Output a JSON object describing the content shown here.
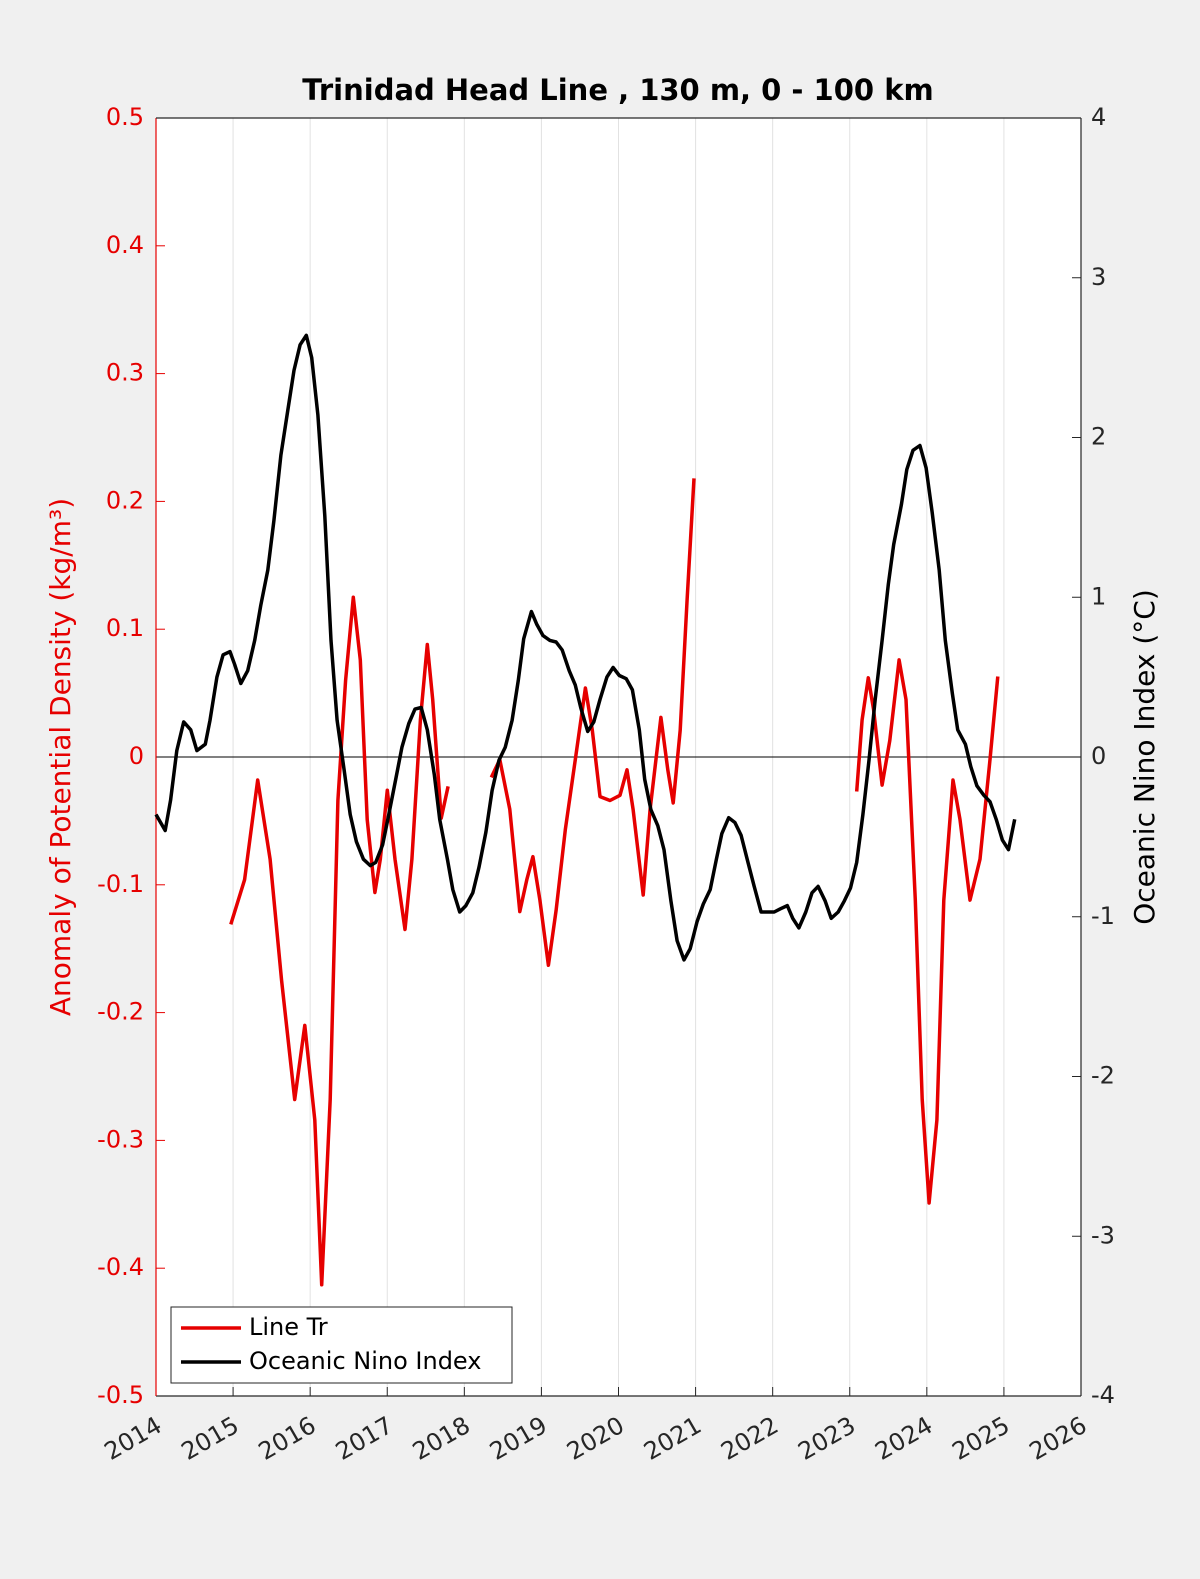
{
  "chart_data": {
    "type": "line",
    "title": "Trinidad Head Line , 130 m, 0 - 100 km",
    "ylabel": "Anomaly of Potential Density (kg/m³)",
    "y2label": "Oceanic Nino Index (°C)",
    "xlim": [
      2014,
      2026
    ],
    "xticks": [
      2014,
      2015,
      2016,
      2017,
      2018,
      2019,
      2020,
      2021,
      2022,
      2023,
      2024,
      2025,
      2026
    ],
    "ylim": [
      -0.5,
      0.5
    ],
    "yticks": [
      -0.5,
      -0.4,
      -0.3,
      -0.2,
      -0.1,
      0,
      0.1,
      0.2,
      0.3,
      0.4,
      0.5
    ],
    "y2lim": [
      -4,
      4
    ],
    "y2ticks": [
      -4,
      -3,
      -2,
      -1,
      0,
      1,
      2,
      3,
      4
    ],
    "grid": "x",
    "legend": "lower left",
    "ylabel_color": "#e60000",
    "series": [
      {
        "name": "Line Tr",
        "color": "#e60000",
        "axis": "y",
        "x": [
          2014.97,
          2015.15,
          2015.32,
          2015.48,
          2015.63,
          2015.8,
          2015.93,
          2016.06,
          2016.15,
          2016.26,
          2016.36,
          2016.46,
          2016.56,
          2016.65,
          2016.74,
          2016.84,
          2016.91,
          2017.0,
          2017.1,
          2017.23,
          2017.32,
          2017.43,
          2017.52,
          2017.59,
          2017.7,
          2017.79,
          2018.05,
          2018.35,
          2018.46,
          2018.59,
          2018.72,
          2018.81,
          2018.89,
          2018.98,
          2019.09,
          2019.19,
          2019.31,
          2019.44,
          2019.57,
          2019.66,
          2019.76,
          2019.89,
          2020.02,
          2020.11,
          2020.19,
          2020.32,
          2020.41,
          2020.55,
          2020.64,
          2020.71,
          2020.8,
          2020.89,
          2020.98,
          2022.0,
          2023.09,
          2023.16,
          2023.24,
          2023.31,
          2023.42,
          2023.52,
          2023.64,
          2023.73,
          2023.85,
          2023.94,
          2024.03,
          2024.13,
          2024.22,
          2024.34,
          2024.43,
          2024.56,
          2024.69,
          2024.82,
          2024.92
        ],
        "values": [
          -0.131,
          -0.096,
          -0.018,
          -0.08,
          -0.175,
          -0.268,
          -0.21,
          -0.284,
          -0.413,
          -0.268,
          -0.034,
          0.06,
          0.125,
          0.076,
          -0.049,
          -0.106,
          -0.08,
          -0.026,
          -0.08,
          -0.135,
          -0.08,
          0.029,
          0.088,
          0.045,
          -0.048,
          -0.023,
          null,
          -0.016,
          -0.002,
          -0.041,
          -0.121,
          -0.096,
          -0.078,
          -0.112,
          -0.163,
          -0.12,
          -0.057,
          -0.002,
          0.054,
          0.021,
          -0.031,
          -0.034,
          -0.03,
          -0.01,
          -0.041,
          -0.108,
          -0.041,
          0.031,
          -0.01,
          -0.036,
          0.021,
          0.123,
          0.218,
          null,
          -0.027,
          0.029,
          0.062,
          0.037,
          -0.022,
          0.013,
          0.076,
          0.045,
          -0.112,
          -0.268,
          -0.349,
          -0.284,
          -0.112,
          -0.018,
          -0.049,
          -0.112,
          -0.08,
          -0.002,
          0.063
        ]
      },
      {
        "name": "Oceanic Nino Index",
        "color": "#000000",
        "axis": "y2",
        "x": [
          2014.0,
          2014.12,
          2014.19,
          2014.27,
          2014.36,
          2014.45,
          2014.53,
          2014.64,
          2014.7,
          2014.79,
          2014.87,
          2014.96,
          2015.02,
          2015.1,
          2015.19,
          2015.28,
          2015.36,
          2015.45,
          2015.53,
          2015.62,
          2015.71,
          2015.79,
          2015.87,
          2015.95,
          2016.02,
          2016.1,
          2016.19,
          2016.27,
          2016.35,
          2016.44,
          2016.52,
          2016.6,
          2016.69,
          2016.78,
          2016.85,
          2016.94,
          2017.02,
          2017.11,
          2017.19,
          2017.28,
          2017.36,
          2017.44,
          2017.52,
          2017.61,
          2017.68,
          2017.78,
          2017.85,
          2017.94,
          2018.02,
          2018.11,
          2018.19,
          2018.28,
          2018.36,
          2018.45,
          2018.53,
          2018.62,
          2018.7,
          2018.77,
          2018.87,
          2018.94,
          2019.02,
          2019.11,
          2019.19,
          2019.27,
          2019.36,
          2019.44,
          2019.51,
          2019.6,
          2019.68,
          2019.76,
          2019.85,
          2019.93,
          2020.01,
          2020.1,
          2020.18,
          2020.27,
          2020.34,
          2020.42,
          2020.51,
          2020.59,
          2020.68,
          2020.76,
          2020.85,
          2020.93,
          2021.02,
          2021.1,
          2021.19,
          2021.27,
          2021.34,
          2021.43,
          2021.51,
          2021.59,
          2021.68,
          2021.76,
          2021.85,
          2021.93,
          2022.02,
          2022.1,
          2022.19,
          2022.26,
          2022.34,
          2022.43,
          2022.51,
          2022.59,
          2022.68,
          2022.76,
          2022.85,
          2022.93,
          2023.01,
          2023.09,
          2023.17,
          2023.25,
          2023.33,
          2023.42,
          2023.5,
          2023.57,
          2023.67,
          2023.74,
          2023.82,
          2023.91,
          2023.99,
          2024.07,
          2024.16,
          2024.24,
          2024.33,
          2024.4,
          2024.5,
          2024.57,
          2024.65,
          2024.74,
          2024.82,
          2024.9,
          2024.98,
          2025.06,
          2025.14
        ],
        "values": [
          -0.36,
          -0.46,
          -0.27,
          0.04,
          0.22,
          0.17,
          0.04,
          0.08,
          0.23,
          0.5,
          0.64,
          0.66,
          0.58,
          0.46,
          0.54,
          0.73,
          0.95,
          1.17,
          1.48,
          1.89,
          2.17,
          2.42,
          2.58,
          2.64,
          2.5,
          2.14,
          1.51,
          0.73,
          0.23,
          -0.08,
          -0.36,
          -0.53,
          -0.64,
          -0.68,
          -0.66,
          -0.55,
          -0.36,
          -0.14,
          0.06,
          0.21,
          0.3,
          0.31,
          0.17,
          -0.11,
          -0.39,
          -0.64,
          -0.83,
          -0.97,
          -0.93,
          -0.85,
          -0.69,
          -0.47,
          -0.21,
          -0.02,
          0.06,
          0.23,
          0.48,
          0.74,
          0.91,
          0.83,
          0.76,
          0.73,
          0.72,
          0.67,
          0.54,
          0.45,
          0.31,
          0.16,
          0.22,
          0.36,
          0.5,
          0.56,
          0.51,
          0.49,
          0.42,
          0.17,
          -0.14,
          -0.33,
          -0.43,
          -0.58,
          -0.9,
          -1.15,
          -1.27,
          -1.2,
          -1.03,
          -0.92,
          -0.83,
          -0.64,
          -0.48,
          -0.38,
          -0.41,
          -0.49,
          -0.66,
          -0.81,
          -0.97,
          -0.97,
          -0.97,
          -0.95,
          -0.93,
          -1.01,
          -1.07,
          -0.97,
          -0.85,
          -0.81,
          -0.9,
          -1.01,
          -0.97,
          -0.9,
          -0.82,
          -0.66,
          -0.36,
          -0.02,
          0.36,
          0.73,
          1.08,
          1.33,
          1.58,
          1.8,
          1.92,
          1.95,
          1.81,
          1.53,
          1.17,
          0.73,
          0.4,
          0.17,
          0.08,
          -0.06,
          -0.18,
          -0.24,
          -0.28,
          -0.39,
          -0.52,
          -0.58,
          -0.39
        ]
      }
    ]
  }
}
